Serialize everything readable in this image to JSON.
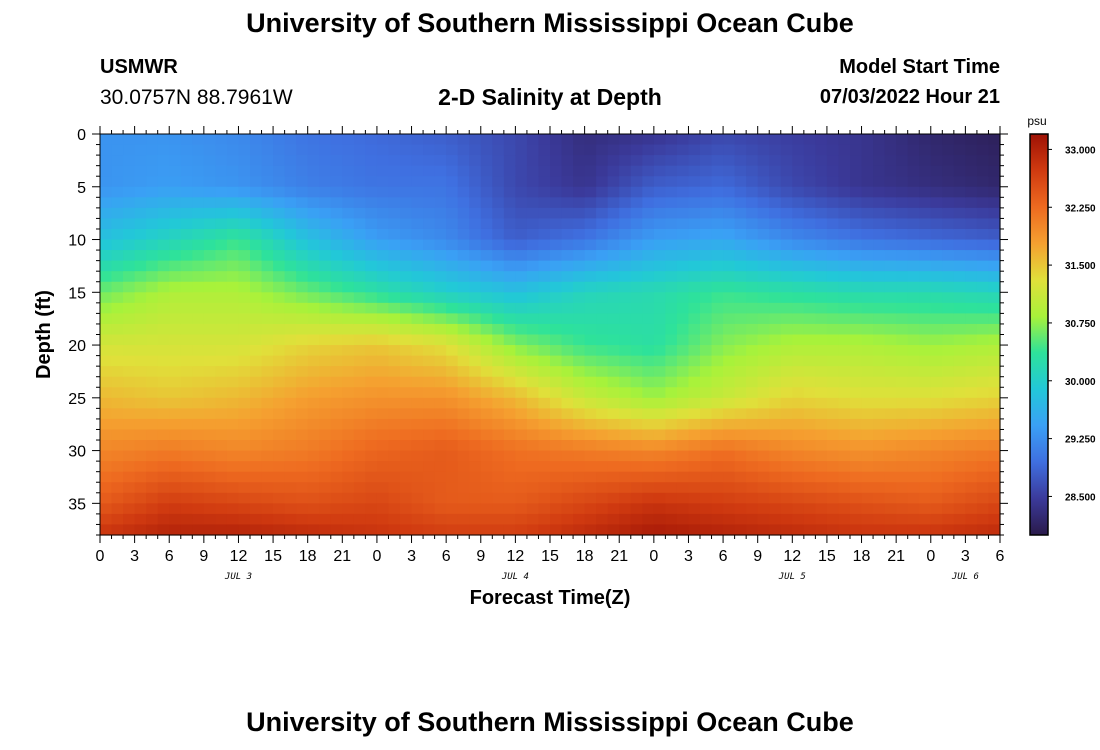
{
  "header": {
    "title": "University of Southern Mississippi Ocean Cube",
    "station": "USMWR",
    "coordinates": "30.0757N  88.7961W",
    "subtitle": "2-D Salinity at Depth",
    "model_start_label": "Model Start Time",
    "model_start_value": "07/03/2022 Hour 21"
  },
  "footer": {
    "title": "University of Southern Mississippi Ocean Cube"
  },
  "colors": {
    "colormap": [
      "#2a1a4a",
      "#3b3a9b",
      "#3f6fe0",
      "#3aa0f5",
      "#22c8d8",
      "#2ee29a",
      "#a8f23a",
      "#e0e03a",
      "#f5a030",
      "#ee6a20",
      "#d03a10",
      "#9e1205"
    ]
  },
  "chart_data": {
    "type": "heatmap",
    "title": "2-D Salinity at Depth",
    "xlabel": "Forecast Time(Z)",
    "ylabel": "Depth (ft)",
    "x_tick_labels": [
      "0",
      "3",
      "6",
      "9",
      "12",
      "15",
      "18",
      "21",
      "0",
      "3",
      "6",
      "9",
      "12",
      "15",
      "18",
      "21",
      "0",
      "3",
      "6",
      "9",
      "12",
      "15",
      "18",
      "21",
      "0",
      "3",
      "6"
    ],
    "x_range_hours": [
      0,
      78
    ],
    "x_label_step_hours": 3,
    "day_labels": [
      {
        "text": "JUL 3",
        "hour": 12
      },
      {
        "text": "JUL 4",
        "hour": 36
      },
      {
        "text": "JUL 5",
        "hour": 60
      },
      {
        "text": "JUL 6",
        "hour": 75
      }
    ],
    "y_ticks": [
      0,
      5,
      10,
      15,
      20,
      25,
      30,
      35
    ],
    "y_range_ft": [
      0,
      38
    ],
    "colorbar": {
      "unit": "psu",
      "ticks": [
        "33.000",
        "32.250",
        "31.500",
        "30.750",
        "30.000",
        "29.250",
        "28.500"
      ],
      "range": [
        28.0,
        33.2
      ]
    },
    "depths_ft": [
      0,
      5,
      10,
      15,
      20,
      25,
      30,
      35,
      38
    ],
    "times_hr": [
      0,
      6,
      12,
      18,
      24,
      30,
      36,
      42,
      48,
      54,
      60,
      66,
      72,
      78
    ],
    "values": [
      [
        29.3,
        29.3,
        29.2,
        29.0,
        28.9,
        28.8,
        28.6,
        28.3,
        28.4,
        28.6,
        28.5,
        28.4,
        28.2,
        28.1
      ],
      [
        29.3,
        29.4,
        29.3,
        29.1,
        29.0,
        29.0,
        28.6,
        28.4,
        28.8,
        28.9,
        28.6,
        28.4,
        28.3,
        28.2
      ],
      [
        29.8,
        30.1,
        30.4,
        29.8,
        29.4,
        29.2,
        28.8,
        29.0,
        29.4,
        29.5,
        29.2,
        29.0,
        28.9,
        28.8
      ],
      [
        30.6,
        30.9,
        30.9,
        30.6,
        30.3,
        30.0,
        29.8,
        30.1,
        30.2,
        30.4,
        30.3,
        30.2,
        30.2,
        30.1
      ],
      [
        31.2,
        31.2,
        31.2,
        31.4,
        31.5,
        31.3,
        30.7,
        30.4,
        30.3,
        30.7,
        30.9,
        30.9,
        30.8,
        30.9
      ],
      [
        31.6,
        31.5,
        31.6,
        31.8,
        31.9,
        31.9,
        31.6,
        31.1,
        30.8,
        31.1,
        31.4,
        31.3,
        31.3,
        31.4
      ],
      [
        32.0,
        32.1,
        32.0,
        32.1,
        32.3,
        32.4,
        32.2,
        32.1,
        32.0,
        32.2,
        32.0,
        31.9,
        32.0,
        32.1
      ],
      [
        32.4,
        32.7,
        32.6,
        32.5,
        32.6,
        32.4,
        32.4,
        32.6,
        32.8,
        32.7,
        32.6,
        32.5,
        32.4,
        32.6
      ],
      [
        32.8,
        33.0,
        33.0,
        32.9,
        32.8,
        32.7,
        32.7,
        32.9,
        33.1,
        33.0,
        32.9,
        32.8,
        32.8,
        32.9
      ]
    ]
  }
}
